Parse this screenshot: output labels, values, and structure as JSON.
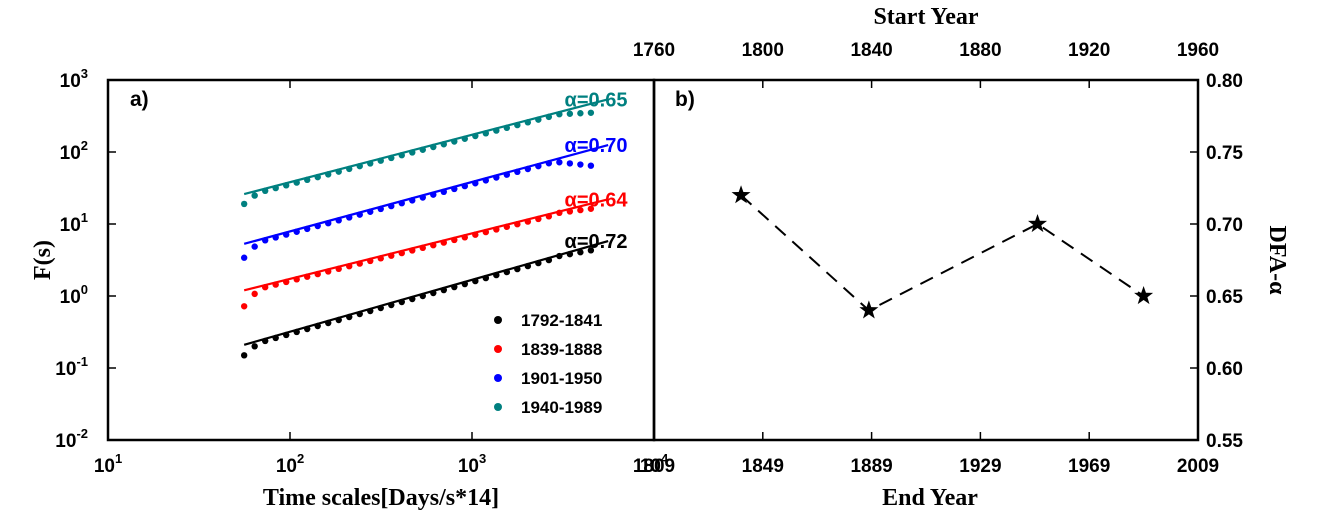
{
  "chart_data": [
    {
      "panel": "a)",
      "type": "scatter",
      "xscale": "log",
      "yscale": "log",
      "xlabel": "Time scales[Days/s*14]",
      "ylabel": "F(s)",
      "xlim": [
        10,
        10000
      ],
      "ylim": [
        0.01,
        1000
      ],
      "x_ticks": [
        {
          "base": "10",
          "exp": "1"
        },
        {
          "base": "10",
          "exp": "2"
        },
        {
          "base": "10",
          "exp": "3"
        },
        {
          "base": "10",
          "exp": "4"
        }
      ],
      "y_ticks": [
        {
          "base": "10",
          "exp": "-2"
        },
        {
          "base": "10",
          "exp": "-1"
        },
        {
          "base": "10",
          "exp": "0"
        },
        {
          "base": "10",
          "exp": "1"
        },
        {
          "base": "10",
          "exp": "2"
        },
        {
          "base": "10",
          "exp": "3"
        }
      ],
      "series": [
        {
          "name": "1792-1841",
          "color": "#000000",
          "alpha_label": "α=0.72",
          "alpha": 0.72,
          "fit_start": [
            56,
            0.21
          ],
          "fit_end": [
            5600,
            5.8
          ],
          "s_range": [
            56,
            4500
          ],
          "n_points": 34,
          "first_y": 0.15,
          "end_dip": 0.87
        },
        {
          "name": "1839-1888",
          "color": "#ff0000",
          "alpha_label": "α=0.64",
          "alpha": 0.64,
          "fit_start": [
            56,
            1.2
          ],
          "fit_end": [
            5600,
            22
          ],
          "s_range": [
            56,
            4500
          ],
          "n_points": 34,
          "first_y": 0.72,
          "end_dip": 0.85
        },
        {
          "name": "1901-1950",
          "color": "#0000ff",
          "alpha_label": "α=0.70",
          "alpha": 0.7,
          "fit_start": [
            56,
            5.3
          ],
          "fit_end": [
            5600,
            125
          ],
          "s_range": [
            56,
            4500
          ],
          "n_points": 34,
          "first_y": 3.4,
          "end_dip": 0.6
        },
        {
          "name": "1940-1989",
          "color": "#008080",
          "alpha_label": "α=0.65",
          "alpha": 0.65,
          "fit_start": [
            56,
            26
          ],
          "fit_end": [
            5600,
            540
          ],
          "s_range": [
            56,
            4500
          ],
          "n_points": 34,
          "first_y": 19,
          "end_dip": 0.75
        }
      ]
    },
    {
      "panel": "b)",
      "type": "line",
      "xlabel": "End Year",
      "top_xlabel": "Start Year",
      "ylabel": "DFA-α",
      "xlim": [
        1809,
        2009
      ],
      "ylim": [
        0.55,
        0.8
      ],
      "x_ticks": [
        "1809",
        "1849",
        "1889",
        "1929",
        "1969",
        "2009"
      ],
      "top_ticks": [
        "1760",
        "1800",
        "1840",
        "1880",
        "1920",
        "1960"
      ],
      "top_lim": [
        1760,
        1960
      ],
      "y_ticks": [
        "0.55",
        "0.60",
        "0.65",
        "0.70",
        "0.75",
        "0.80"
      ],
      "x": [
        1841,
        1888,
        1950,
        1989
      ],
      "y": [
        0.72,
        0.64,
        0.7,
        0.65
      ],
      "marker": "star",
      "linestyle": "dashed",
      "color": "#000000"
    }
  ]
}
